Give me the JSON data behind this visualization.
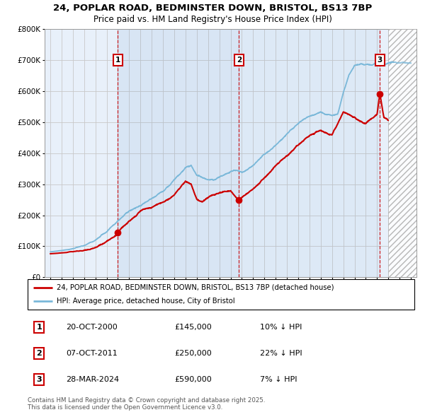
{
  "title_line1": "24, POPLAR ROAD, BEDMINSTER DOWN, BRISTOL, BS13 7BP",
  "title_line2": "Price paid vs. HM Land Registry's House Price Index (HPI)",
  "legend_line1": "24, POPLAR ROAD, BEDMINSTER DOWN, BRISTOL, BS13 7BP (detached house)",
  "legend_line2": "HPI: Average price, detached house, City of Bristol",
  "annotation_copyright": "Contains HM Land Registry data © Crown copyright and database right 2025.\nThis data is licensed under the Open Government Licence v3.0.",
  "transactions": [
    {
      "num": 1,
      "date": "20-OCT-2000",
      "price": 145000,
      "price_str": "£145,000",
      "hpi_diff": "10% ↓ HPI",
      "year": 2001.0
    },
    {
      "num": 2,
      "date": "07-OCT-2011",
      "price": 250000,
      "price_str": "£250,000",
      "hpi_diff": "22% ↓ HPI",
      "year": 2011.75
    },
    {
      "num": 3,
      "date": "28-MAR-2024",
      "price": 590000,
      "price_str": "£590,000",
      "hpi_diff": "7% ↓ HPI",
      "year": 2024.25
    }
  ],
  "hpi_color": "#7ab8d9",
  "price_color": "#cc0000",
  "bg_color": "#e8f0fa",
  "grid_color": "#c8c8c8",
  "ylim": [
    0,
    800000
  ],
  "xlim_start": 1994.5,
  "xlim_end": 2027.5,
  "yticks": [
    0,
    100000,
    200000,
    300000,
    400000,
    500000,
    600000,
    700000,
    800000
  ],
  "ytick_labels": [
    "£0",
    "£100K",
    "£200K",
    "£300K",
    "£400K",
    "£500K",
    "£600K",
    "£700K",
    "£800K"
  ],
  "hpi_key_years": [
    1995,
    1996,
    1997,
    1998,
    1999,
    2000,
    2001,
    2002,
    2003,
    2004,
    2005,
    2006,
    2007,
    2007.5,
    2008,
    2009,
    2009.5,
    2010,
    2010.5,
    2011,
    2011.5,
    2012,
    2012.5,
    2013,
    2014,
    2015,
    2016,
    2017,
    2017.5,
    2018,
    2018.5,
    2019,
    2020,
    2020.5,
    2021,
    2021.5,
    2022,
    2022.5,
    2023,
    2023.5,
    2024,
    2024.5,
    2025,
    2026,
    2027
  ],
  "hpi_key_vals": [
    82000,
    87000,
    93000,
    103000,
    118000,
    145000,
    185000,
    215000,
    235000,
    255000,
    270000,
    305000,
    340000,
    345000,
    315000,
    298000,
    300000,
    308000,
    312000,
    318000,
    322000,
    318000,
    325000,
    335000,
    368000,
    400000,
    435000,
    470000,
    485000,
    495000,
    500000,
    508000,
    493000,
    500000,
    570000,
    625000,
    655000,
    660000,
    658000,
    655000,
    665000,
    650000,
    660000,
    663000,
    660000
  ],
  "price_key_years": [
    1995,
    1996,
    1997,
    1998,
    1999,
    2000,
    2001.0,
    2001.2,
    2002,
    2003,
    2004,
    2005,
    2006,
    2007,
    2007.5,
    2008,
    2008.5,
    2009,
    2009.5,
    2010,
    2011,
    2011.75,
    2012,
    2013,
    2014,
    2015,
    2016,
    2017,
    2018,
    2019,
    2020,
    2021,
    2022,
    2023,
    2023.5,
    2024.0,
    2024.25,
    2024.6,
    2025
  ],
  "price_key_vals": [
    76000,
    79000,
    83000,
    90000,
    100000,
    120000,
    145000,
    158000,
    185000,
    215000,
    230000,
    245000,
    265000,
    305000,
    295000,
    250000,
    240000,
    252000,
    262000,
    270000,
    283000,
    250000,
    262000,
    285000,
    320000,
    360000,
    390000,
    420000,
    450000,
    465000,
    452000,
    525000,
    510000,
    490000,
    505000,
    520000,
    590000,
    510000,
    500000
  ]
}
